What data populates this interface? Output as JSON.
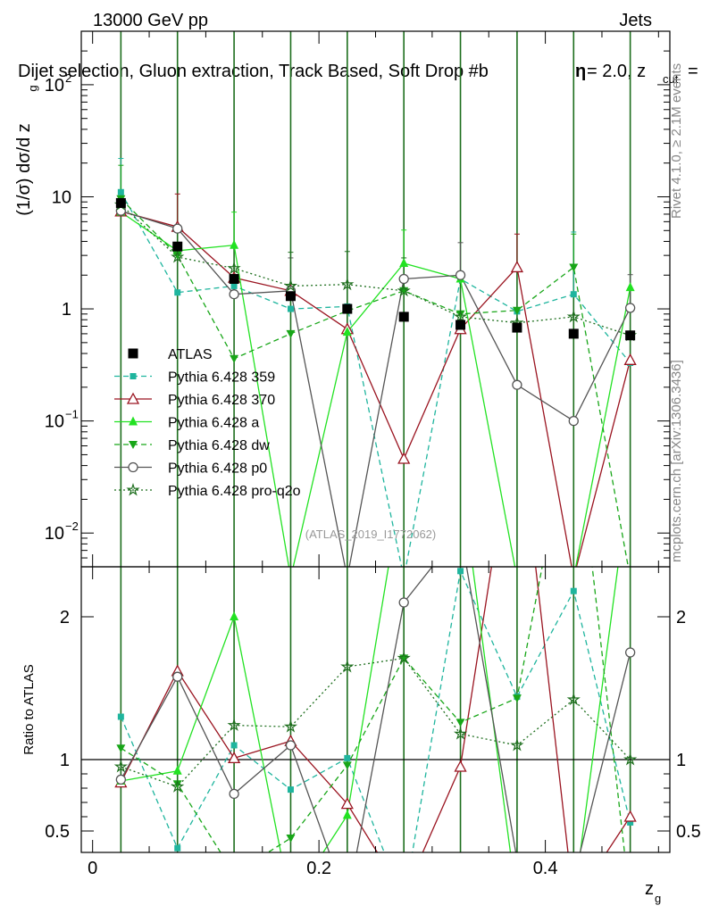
{
  "header": {
    "energy": "13000 GeV pp",
    "category": "Jets",
    "title": "Dijet selection, Gluon extraction, Track Based, Soft Drop #b",
    "title_suffix": "= 2.0, z",
    "title_sub": "cut",
    "title_end": "=",
    "symbol": "η",
    "rivet": "Rivet 4.1.0, ≥ 2.1M events",
    "mcplots": "mcplots.cern.ch [arXiv:1306.3436]",
    "analysis_id": "(ATLAS_2019_I1772062)"
  },
  "colors": {
    "atlas": "#000000",
    "p359": "#1fb59e",
    "p370": "#9a1420",
    "pa": "#22e222",
    "pdw": "#18a618",
    "pp0": "#555555",
    "pq2o": "#1d6e1d"
  },
  "chart_data": [
    {
      "type": "line",
      "panel": "main",
      "yscale": "log",
      "ylabel": "(1/σ) dσ/d z_g",
      "ylabel_parts": [
        "(1/σ) dσ/d z",
        "g"
      ],
      "ylim": [
        0.005,
        300
      ],
      "xlim": [
        -0.01,
        0.51
      ],
      "yticks": [
        {
          "v": 0.01,
          "label": "10",
          "sup": "−2"
        },
        {
          "v": 0.1,
          "label": "10",
          "sup": "−1"
        },
        {
          "v": 1,
          "label": "1",
          "sup": ""
        },
        {
          "v": 10,
          "label": "10",
          "sup": ""
        },
        {
          "v": 100,
          "label": "10",
          "sup": "2"
        }
      ],
      "x": [
        0.025,
        0.075,
        0.125,
        0.175,
        0.225,
        0.275,
        0.325,
        0.375,
        0.425,
        0.475
      ],
      "series": [
        {
          "name": "ATLAS",
          "key": "atlas",
          "marker": "square",
          "line": "none",
          "values": [
            8.8,
            3.6,
            1.85,
            1.3,
            1.0,
            0.85,
            0.72,
            0.68,
            0.6,
            0.58
          ]
        },
        {
          "name": "Pythia 6.428 359",
          "key": "p359",
          "marker": "smallsquare",
          "line": "dashed",
          "values": [
            11.0,
            1.4,
            1.6,
            1.0,
            1.05,
            0.004,
            1.85,
            0.95,
            1.35,
            0.33
          ],
          "errors": [
            11.0,
            null,
            null,
            null,
            null,
            null,
            null,
            null,
            3.5,
            null
          ]
        },
        {
          "name": "Pythia 6.428 370",
          "key": "p370",
          "marker": "triangle-open",
          "line": "solid",
          "values": [
            7.4,
            5.4,
            1.9,
            1.45,
            0.66,
            0.046,
            0.66,
            2.35,
            0.004,
            0.35
          ],
          "errors": [
            null,
            5.2,
            null,
            null,
            null,
            null,
            null,
            2.3,
            null,
            null
          ]
        },
        {
          "name": "Pythia 6.428 a",
          "key": "pa",
          "marker": "triangle",
          "line": "solid",
          "values": [
            7.3,
            3.3,
            3.7,
            0.004,
            0.62,
            2.55,
            1.85,
            0.004,
            0.004,
            1.55
          ],
          "errors": [
            null,
            null,
            3.6,
            null,
            null,
            2.5,
            null,
            null,
            null,
            null
          ]
        },
        {
          "name": "Pythia 6.428 dw",
          "key": "pdw",
          "marker": "triangle-down",
          "line": "dashed",
          "values": [
            9.6,
            3.0,
            0.36,
            0.6,
            0.96,
            1.45,
            0.9,
            0.97,
            2.35,
            0.004
          ],
          "errors": [
            9.5,
            null,
            null,
            null,
            null,
            null,
            null,
            null,
            2.3,
            null
          ]
        },
        {
          "name": "Pythia 6.428 p0",
          "key": "pp0",
          "marker": "circle-open",
          "line": "solid",
          "values": [
            7.5,
            5.2,
            1.35,
            1.45,
            0.004,
            1.85,
            2.0,
            0.21,
            0.1,
            1.02
          ],
          "errors": [
            null,
            null,
            null,
            1.4,
            null,
            null,
            1.9,
            null,
            null,
            1.0
          ]
        },
        {
          "name": "Pythia 6.428 pro-q2o",
          "key": "pq2o",
          "marker": "star",
          "line": "dotted",
          "values": [
            8.5,
            2.9,
            2.3,
            1.6,
            1.65,
            1.45,
            0.85,
            0.75,
            0.85,
            0.58
          ],
          "errors": [
            null,
            null,
            null,
            1.6,
            1.6,
            1.4,
            null,
            null,
            null,
            null
          ]
        }
      ]
    },
    {
      "type": "line",
      "panel": "ratio",
      "ylabel": "Ratio to ATLAS",
      "xlabel": "z_g",
      "xlabel_parts": [
        "z",
        "g"
      ],
      "ylim": [
        0.35,
        2.35
      ],
      "xlim": [
        -0.01,
        0.51
      ],
      "reference": 1.0,
      "yticks": [
        0.5,
        1,
        2
      ],
      "ytick_labels": [
        "0.5",
        "1",
        "2"
      ],
      "xticks": [
        0,
        0.2,
        0.4
      ],
      "xtick_labels": [
        "0",
        "0.2",
        "0.4"
      ],
      "x": [
        0.025,
        0.075,
        0.125,
        0.175,
        0.225,
        0.275,
        0.325,
        0.375,
        0.425,
        0.475
      ],
      "series": [
        {
          "name": "Pythia 6.428 359",
          "key": "p359",
          "values": [
            1.3,
            0.38,
            1.1,
            0.79,
            1.01,
            0.0,
            2.32,
            1.44,
            2.18,
            0.56
          ]
        },
        {
          "name": "Pythia 6.428 370",
          "key": "p370",
          "values": [
            0.84,
            1.62,
            1.01,
            1.13,
            0.69,
            0.05,
            0.95,
            3.5,
            0.0,
            0.6
          ]
        },
        {
          "name": "Pythia 6.428 a",
          "key": "pa",
          "values": [
            0.85,
            0.92,
            2.0,
            0.0,
            0.61,
            3.0,
            3.0,
            0.0,
            0.0,
            3.0
          ]
        },
        {
          "name": "Pythia 6.428 dw",
          "key": "pdw",
          "values": [
            1.08,
            0.83,
            0.2,
            0.45,
            0.96,
            1.71,
            1.26,
            1.43,
            3.5,
            0.0
          ]
        },
        {
          "name": "Pythia 6.428 p0",
          "key": "pp0",
          "values": [
            0.86,
            1.58,
            0.76,
            1.1,
            0.0,
            2.1,
            2.6,
            0.3,
            0.17,
            1.75
          ]
        },
        {
          "name": "Pythia 6.428 pro-q2o",
          "key": "pq2o",
          "values": [
            0.95,
            0.81,
            1.24,
            1.23,
            1.65,
            1.71,
            1.18,
            1.1,
            1.42,
            1.0
          ]
        }
      ]
    }
  ]
}
